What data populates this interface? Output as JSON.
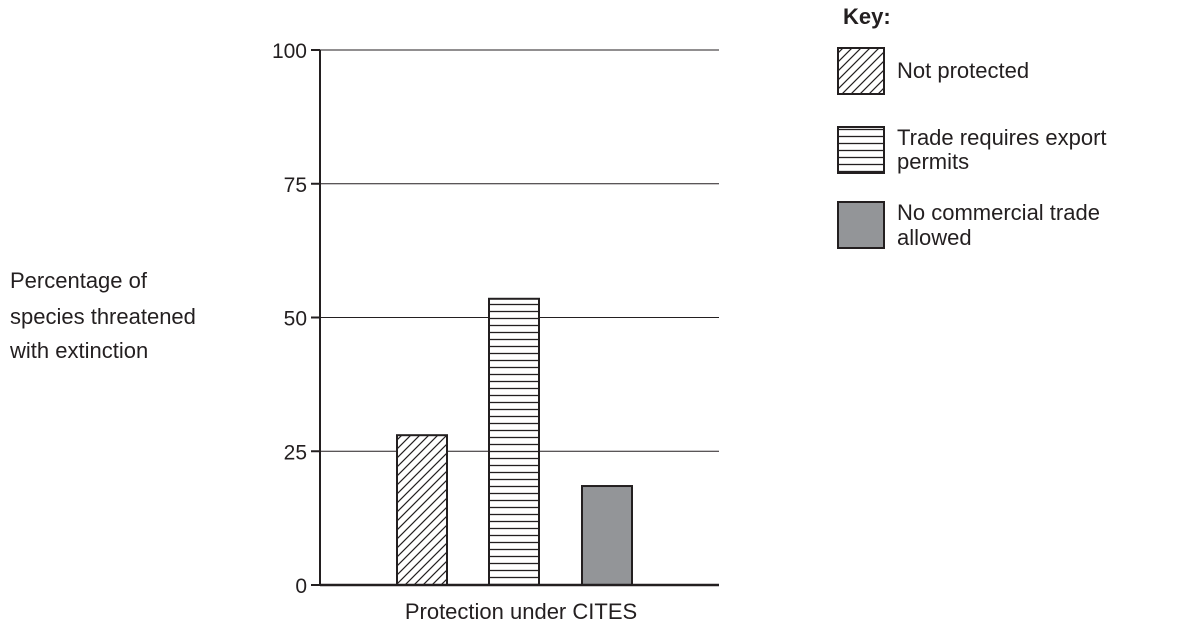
{
  "chart_data": {
    "type": "bar",
    "categories": [
      "Not protected",
      "Trade requires export permits",
      "No commercial trade allowed"
    ],
    "values": [
      28,
      53.5,
      18.5
    ],
    "xlabel": "Protection under CITES",
    "ylabel_lines": [
      "Percentage of",
      "species threatened",
      "with extinction"
    ],
    "ylim": [
      0,
      100
    ],
    "yticks": [
      "0",
      "25",
      "50",
      "75",
      "100"
    ],
    "grid": true,
    "legend": {
      "title": "Key:",
      "placement": "top-right",
      "entries": [
        {
          "lines": [
            "Not protected"
          ],
          "pattern": "diagonal-hatch"
        },
        {
          "lines": [
            "Trade requires export",
            "permits"
          ],
          "pattern": "horizontal-hatch"
        },
        {
          "lines": [
            "No commercial trade",
            "allowed"
          ],
          "pattern": "solid-grey"
        }
      ]
    },
    "colors": {
      "ink": "#231f20",
      "grey_fill": "#939598",
      "background": "#ffffff"
    }
  }
}
